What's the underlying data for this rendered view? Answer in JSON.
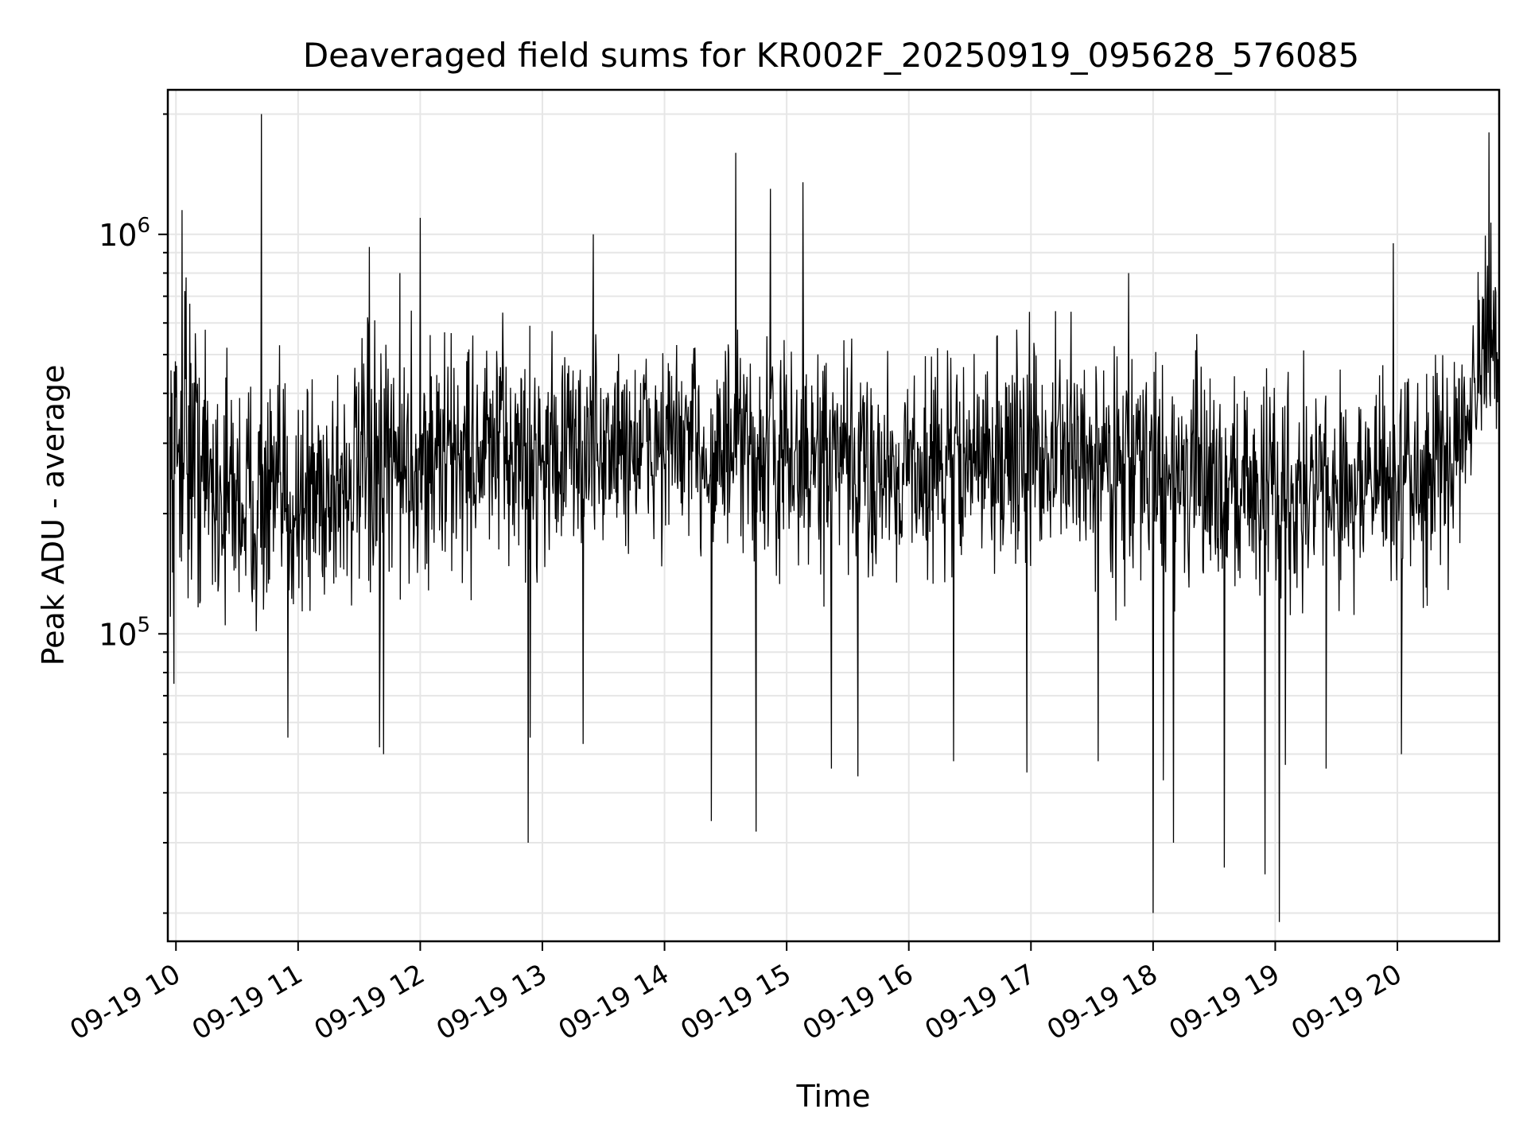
{
  "chart_data": {
    "type": "line",
    "title": "Deaveraged field sums for KR002F_20250919_095628_576085",
    "xlabel": "Time",
    "ylabel": "Peak ADU - average",
    "yscale": "log",
    "grid": true,
    "xlim": [
      "2025-09-19T09:56",
      "2025-09-19T20:50"
    ],
    "ylim": [
      17000,
      2300000
    ],
    "x_ticks": [
      {
        "value": "2025-09-19T10:00",
        "label": "09-19 10"
      },
      {
        "value": "2025-09-19T11:00",
        "label": "09-19 11"
      },
      {
        "value": "2025-09-19T12:00",
        "label": "09-19 12"
      },
      {
        "value": "2025-09-19T13:00",
        "label": "09-19 13"
      },
      {
        "value": "2025-09-19T14:00",
        "label": "09-19 14"
      },
      {
        "value": "2025-09-19T15:00",
        "label": "09-19 15"
      },
      {
        "value": "2025-09-19T16:00",
        "label": "09-19 16"
      },
      {
        "value": "2025-09-19T17:00",
        "label": "09-19 17"
      },
      {
        "value": "2025-09-19T18:00",
        "label": "09-19 18"
      },
      {
        "value": "2025-09-19T19:00",
        "label": "09-19 19"
      },
      {
        "value": "2025-09-19T20:00",
        "label": "09-19 20"
      }
    ],
    "y_major_ticks": [
      {
        "value": 100000,
        "base": "10",
        "exp": "5"
      },
      {
        "value": 1000000,
        "base": "10",
        "exp": "6"
      }
    ],
    "series": [
      {
        "color": "#000000",
        "envelope": [
          {
            "x": "2025-09-19T09:57",
            "low": 150000,
            "high": 500000
          },
          {
            "x": "2025-09-19T10:05",
            "low": 130000,
            "high": 700000
          },
          {
            "x": "2025-09-19T10:20",
            "low": 120000,
            "high": 450000
          },
          {
            "x": "2025-09-19T10:40",
            "low": 110000,
            "high": 400000
          },
          {
            "x": "2025-09-19T11:00",
            "low": 115000,
            "high": 420000
          },
          {
            "x": "2025-09-19T11:30",
            "low": 125000,
            "high": 480000
          },
          {
            "x": "2025-09-19T12:00",
            "low": 140000,
            "high": 520000
          },
          {
            "x": "2025-09-19T12:30",
            "low": 150000,
            "high": 540000
          },
          {
            "x": "2025-09-19T13:00",
            "low": 160000,
            "high": 500000
          },
          {
            "x": "2025-09-19T13:30",
            "low": 170000,
            "high": 500000
          },
          {
            "x": "2025-09-19T14:00",
            "low": 170000,
            "high": 520000
          },
          {
            "x": "2025-09-19T14:30",
            "low": 160000,
            "high": 500000
          },
          {
            "x": "2025-09-19T15:00",
            "low": 150000,
            "high": 480000
          },
          {
            "x": "2025-09-19T15:30",
            "low": 145000,
            "high": 470000
          },
          {
            "x": "2025-09-19T16:00",
            "low": 150000,
            "high": 450000
          },
          {
            "x": "2025-09-19T16:30",
            "low": 155000,
            "high": 470000
          },
          {
            "x": "2025-09-19T17:00",
            "low": 160000,
            "high": 520000
          },
          {
            "x": "2025-09-19T17:30",
            "low": 150000,
            "high": 500000
          },
          {
            "x": "2025-09-19T18:00",
            "low": 140000,
            "high": 450000
          },
          {
            "x": "2025-09-19T18:30",
            "low": 135000,
            "high": 430000
          },
          {
            "x": "2025-09-19T19:00",
            "low": 130000,
            "high": 420000
          },
          {
            "x": "2025-09-19T19:30",
            "low": 130000,
            "high": 420000
          },
          {
            "x": "2025-09-19T20:00",
            "low": 135000,
            "high": 430000
          },
          {
            "x": "2025-09-19T20:25",
            "low": 150000,
            "high": 450000
          },
          {
            "x": "2025-09-19T20:35",
            "low": 250000,
            "high": 700000
          },
          {
            "x": "2025-09-19T20:50",
            "low": 300000,
            "high": 900000
          }
        ],
        "spikes": [
          {
            "x": "2025-09-19T10:03",
            "value": 1150000
          },
          {
            "x": "2025-09-19T10:05",
            "value": 780000
          },
          {
            "x": "2025-09-19T10:42",
            "value": 2000000
          },
          {
            "x": "2025-09-19T11:35",
            "value": 930000
          },
          {
            "x": "2025-09-19T11:50",
            "value": 800000
          },
          {
            "x": "2025-09-19T12:00",
            "value": 1100000
          },
          {
            "x": "2025-09-19T13:25",
            "value": 1000000
          },
          {
            "x": "2025-09-19T14:35",
            "value": 1600000
          },
          {
            "x": "2025-09-19T14:52",
            "value": 1300000
          },
          {
            "x": "2025-09-19T15:08",
            "value": 1350000
          },
          {
            "x": "2025-09-19T17:48",
            "value": 800000
          },
          {
            "x": "2025-09-19T19:58",
            "value": 950000
          },
          {
            "x": "2025-09-19T20:45",
            "value": 1800000
          },
          {
            "x": "2025-09-19T09:59",
            "value": 75000
          },
          {
            "x": "2025-09-19T10:55",
            "value": 55000
          },
          {
            "x": "2025-09-19T11:40",
            "value": 52000
          },
          {
            "x": "2025-09-19T11:42",
            "value": 50000
          },
          {
            "x": "2025-09-19T12:53",
            "value": 30000
          },
          {
            "x": "2025-09-19T12:54",
            "value": 55000
          },
          {
            "x": "2025-09-19T13:20",
            "value": 53000
          },
          {
            "x": "2025-09-19T14:23",
            "value": 34000
          },
          {
            "x": "2025-09-19T14:45",
            "value": 32000
          },
          {
            "x": "2025-09-19T15:22",
            "value": 46000
          },
          {
            "x": "2025-09-19T15:35",
            "value": 44000
          },
          {
            "x": "2025-09-19T16:22",
            "value": 48000
          },
          {
            "x": "2025-09-19T16:58",
            "value": 45000
          },
          {
            "x": "2025-09-19T17:33",
            "value": 48000
          },
          {
            "x": "2025-09-19T18:00",
            "value": 20000
          },
          {
            "x": "2025-09-19T18:05",
            "value": 43000
          },
          {
            "x": "2025-09-19T18:10",
            "value": 30000
          },
          {
            "x": "2025-09-19T18:35",
            "value": 26000
          },
          {
            "x": "2025-09-19T18:55",
            "value": 25000
          },
          {
            "x": "2025-09-19T19:02",
            "value": 19000
          },
          {
            "x": "2025-09-19T19:05",
            "value": 47000
          },
          {
            "x": "2025-09-19T19:25",
            "value": 46000
          },
          {
            "x": "2025-09-19T20:02",
            "value": 50000
          }
        ]
      }
    ]
  }
}
